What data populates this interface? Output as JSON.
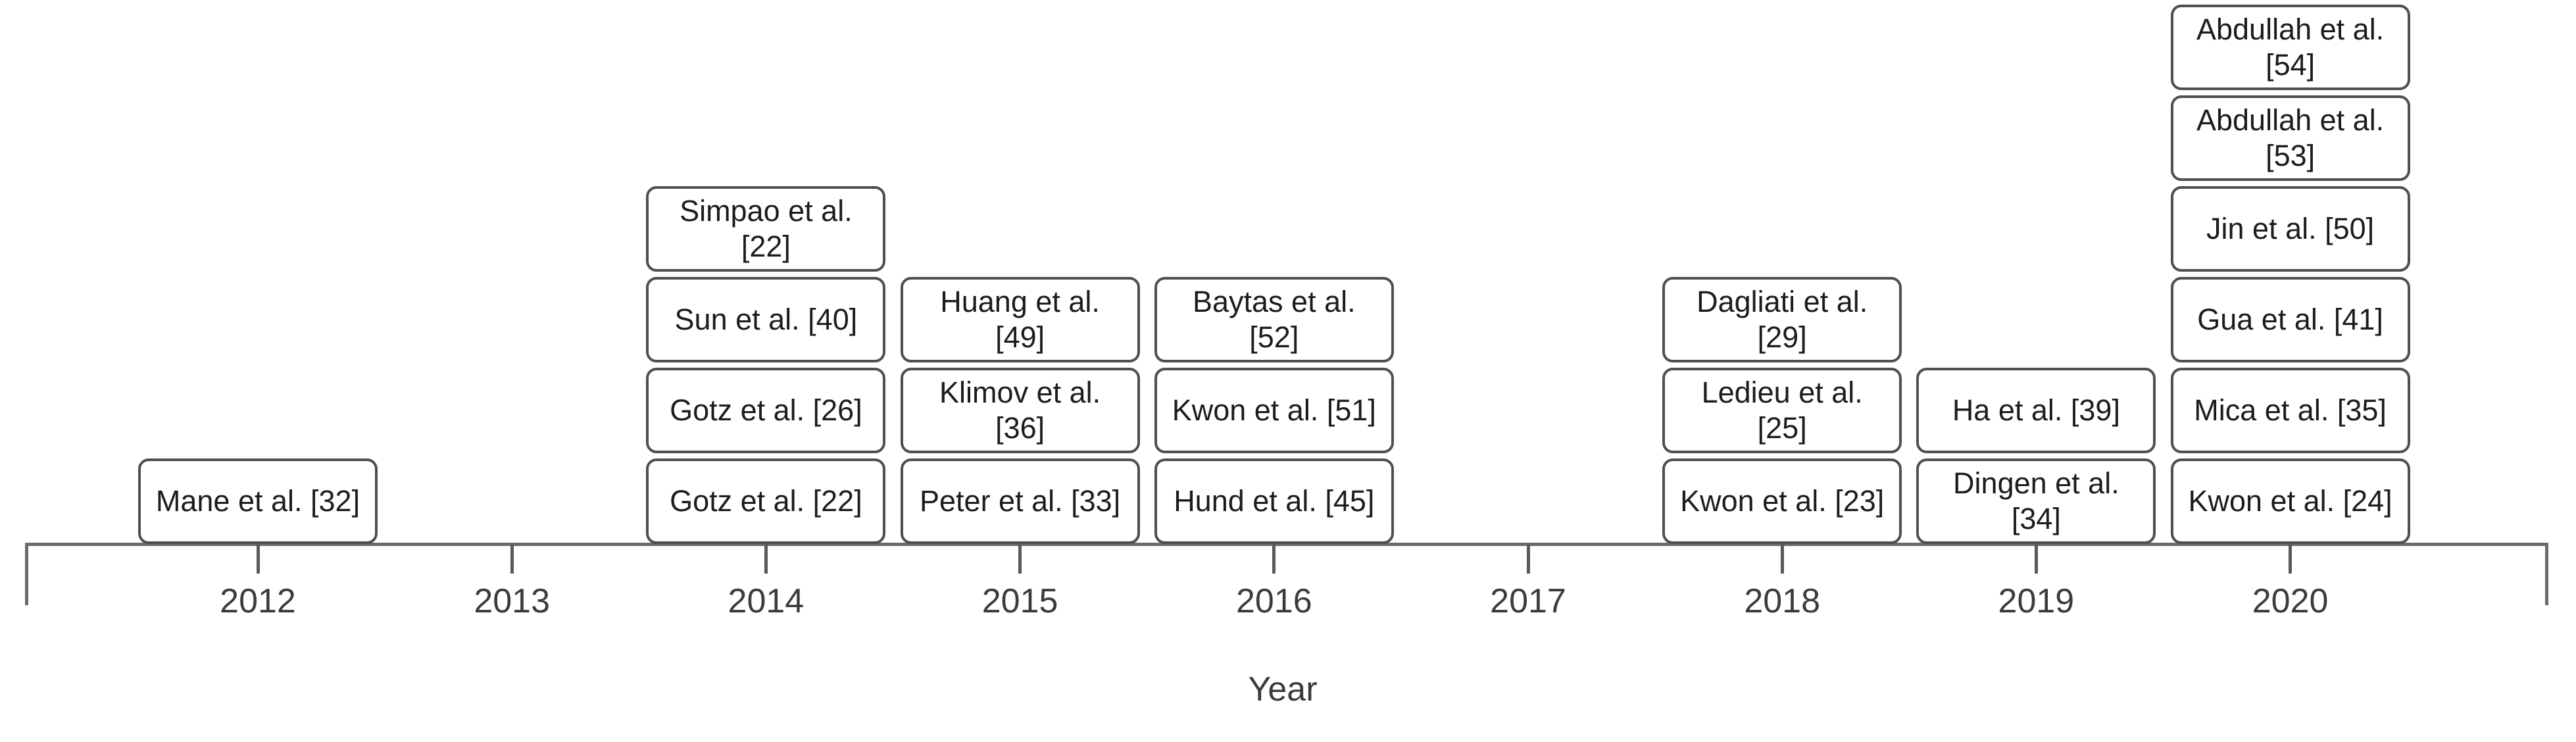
{
  "chart_data": {
    "type": "timeline",
    "title": "",
    "xlabel": "Year",
    "categories": [
      "2012",
      "2013",
      "2014",
      "2015",
      "2016",
      "2017",
      "2018",
      "2019",
      "2020"
    ],
    "years": [
      {
        "year": "2012",
        "papers": [
          "Mane et al. [32]"
        ]
      },
      {
        "year": "2013",
        "papers": []
      },
      {
        "year": "2014",
        "papers": [
          "Gotz et al. [22]",
          "Gotz et al. [26]",
          "Sun et al. [40]",
          "Simpao et al. [22]"
        ]
      },
      {
        "year": "2015",
        "papers": [
          "Peter et al. [33]",
          "Klimov et al. [36]",
          "Huang et al. [49]"
        ]
      },
      {
        "year": "2016",
        "papers": [
          "Hund et al. [45]",
          "Kwon et al. [51]",
          "Baytas et al. [52]"
        ]
      },
      {
        "year": "2017",
        "papers": []
      },
      {
        "year": "2018",
        "papers": [
          "Kwon et al. [23]",
          "Ledieu et al. [25]",
          "Dagliati et al. [29]"
        ]
      },
      {
        "year": "2019",
        "papers": [
          "Dingen et al. [34]",
          "Ha et al. [39]"
        ]
      },
      {
        "year": "2020",
        "papers": [
          "Kwon et al. [24]",
          "Mica et al. [35]",
          "Gua et al. [41]",
          "Jin et al. [50]",
          "Abdullah et al. [53]",
          "Abdullah et al. [54]"
        ]
      }
    ],
    "counts_per_year": [
      1,
      0,
      4,
      3,
      3,
      0,
      3,
      2,
      6
    ],
    "note_papers_order": "bottom-to-top",
    "legend": "none",
    "grid": false
  },
  "colors": {
    "background": "#ffffff",
    "box_fill": "#ffffff",
    "box_border": "#4f4f4f",
    "box_text": "#1c1c1c",
    "axis": "#6a6a6a",
    "tick": "#5a5a5a",
    "label_text": "#3b3b3b"
  }
}
